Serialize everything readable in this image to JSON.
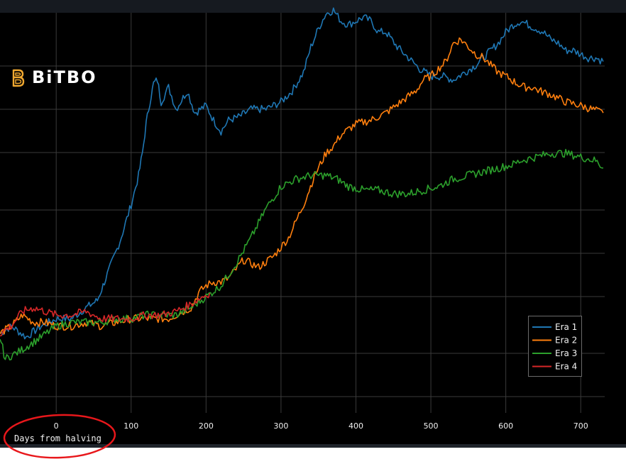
{
  "brand": {
    "logo_text": "BiTBO",
    "accent_color": "#f0a830",
    "logo_icon": "bitbo-b-icon"
  },
  "annotation": {
    "shape": "hand-drawn ellipse",
    "color": "#e8171b"
  },
  "chart_data": {
    "type": "line",
    "xlabel": "Days from halving",
    "xlim": [
      -75,
      732
    ],
    "x_ticks": [
      0,
      100,
      200,
      300,
      400,
      500,
      600,
      700
    ],
    "y_ticks_count": 8,
    "ylim": [
      0,
      100
    ],
    "grid": true,
    "legend_position": "bottom-right",
    "series": [
      {
        "name": "Era 1",
        "color": "#1f77b4",
        "points": [
          [
            -75,
            17
          ],
          [
            -60,
            19
          ],
          [
            -40,
            16
          ],
          [
            -20,
            19
          ],
          [
            0,
            21
          ],
          [
            20,
            21
          ],
          [
            40,
            24
          ],
          [
            55,
            26
          ],
          [
            70,
            34
          ],
          [
            85,
            42
          ],
          [
            100,
            52
          ],
          [
            110,
            60
          ],
          [
            115,
            66
          ],
          [
            120,
            74
          ],
          [
            125,
            80
          ],
          [
            130,
            85
          ],
          [
            135,
            86
          ],
          [
            140,
            80
          ],
          [
            150,
            84
          ],
          [
            160,
            78
          ],
          [
            175,
            83
          ],
          [
            185,
            77
          ],
          [
            200,
            79
          ],
          [
            210,
            75
          ],
          [
            220,
            72
          ],
          [
            230,
            75
          ],
          [
            245,
            76
          ],
          [
            260,
            78
          ],
          [
            280,
            78
          ],
          [
            300,
            80
          ],
          [
            315,
            83
          ],
          [
            330,
            88
          ],
          [
            340,
            95
          ],
          [
            350,
            100
          ],
          [
            360,
            104
          ],
          [
            370,
            105
          ],
          [
            380,
            102
          ],
          [
            390,
            101
          ],
          [
            400,
            102
          ],
          [
            410,
            103
          ],
          [
            420,
            102
          ],
          [
            430,
            99
          ],
          [
            440,
            99
          ],
          [
            455,
            95
          ],
          [
            470,
            92
          ],
          [
            485,
            89
          ],
          [
            500,
            87
          ],
          [
            515,
            87
          ],
          [
            530,
            86
          ],
          [
            545,
            88
          ],
          [
            560,
            90
          ],
          [
            575,
            93
          ],
          [
            590,
            96
          ],
          [
            600,
            99
          ],
          [
            610,
            101
          ],
          [
            620,
            102
          ],
          [
            630,
            101
          ],
          [
            640,
            100
          ],
          [
            650,
            99
          ],
          [
            660,
            97
          ],
          [
            670,
            96
          ],
          [
            680,
            94
          ],
          [
            690,
            94
          ],
          [
            700,
            93
          ],
          [
            710,
            92
          ],
          [
            720,
            92
          ],
          [
            730,
            91
          ]
        ]
      },
      {
        "name": "Era 2",
        "color": "#ff7f0e",
        "points": [
          [
            -75,
            17
          ],
          [
            -60,
            19
          ],
          [
            -45,
            22
          ],
          [
            -30,
            20
          ],
          [
            -15,
            20
          ],
          [
            0,
            19
          ],
          [
            20,
            19
          ],
          [
            40,
            20
          ],
          [
            60,
            19
          ],
          [
            80,
            20
          ],
          [
            100,
            21
          ],
          [
            120,
            21
          ],
          [
            150,
            21
          ],
          [
            170,
            23
          ],
          [
            180,
            24
          ],
          [
            190,
            28
          ],
          [
            200,
            30
          ],
          [
            210,
            31
          ],
          [
            220,
            31
          ],
          [
            230,
            32
          ],
          [
            250,
            37
          ],
          [
            270,
            35
          ],
          [
            290,
            38
          ],
          [
            310,
            43
          ],
          [
            330,
            52
          ],
          [
            345,
            60
          ],
          [
            360,
            66
          ],
          [
            370,
            68
          ],
          [
            380,
            71
          ],
          [
            400,
            74
          ],
          [
            420,
            75
          ],
          [
            440,
            77
          ],
          [
            460,
            80
          ],
          [
            480,
            83
          ],
          [
            490,
            86
          ],
          [
            500,
            87
          ],
          [
            510,
            89
          ],
          [
            520,
            91
          ],
          [
            530,
            96
          ],
          [
            540,
            97
          ],
          [
            550,
            95
          ],
          [
            560,
            93
          ],
          [
            570,
            92
          ],
          [
            580,
            90
          ],
          [
            590,
            88
          ],
          [
            600,
            87
          ],
          [
            615,
            85
          ],
          [
            625,
            84
          ],
          [
            635,
            84
          ],
          [
            645,
            83
          ],
          [
            660,
            82
          ],
          [
            680,
            80
          ],
          [
            700,
            79
          ],
          [
            715,
            78
          ],
          [
            730,
            77
          ]
        ]
      },
      {
        "name": "Era 3",
        "color": "#2ca02c",
        "points": [
          [
            -75,
            16
          ],
          [
            -68,
            10
          ],
          [
            -60,
            11
          ],
          [
            -50,
            12
          ],
          [
            -35,
            14
          ],
          [
            -20,
            16
          ],
          [
            0,
            19
          ],
          [
            20,
            20
          ],
          [
            40,
            20
          ],
          [
            60,
            20
          ],
          [
            80,
            21
          ],
          [
            100,
            21
          ],
          [
            120,
            22
          ],
          [
            140,
            22
          ],
          [
            160,
            22
          ],
          [
            180,
            24
          ],
          [
            200,
            27
          ],
          [
            220,
            30
          ],
          [
            240,
            36
          ],
          [
            260,
            43
          ],
          [
            280,
            51
          ],
          [
            300,
            57
          ],
          [
            320,
            59
          ],
          [
            340,
            60
          ],
          [
            360,
            60
          ],
          [
            375,
            59
          ],
          [
            390,
            57
          ],
          [
            410,
            56
          ],
          [
            430,
            56
          ],
          [
            450,
            55
          ],
          [
            470,
            55
          ],
          [
            490,
            56
          ],
          [
            510,
            57
          ],
          [
            530,
            59
          ],
          [
            550,
            60
          ],
          [
            570,
            61
          ],
          [
            590,
            62
          ],
          [
            610,
            63
          ],
          [
            620,
            64
          ],
          [
            640,
            65
          ],
          [
            660,
            66
          ],
          [
            680,
            66
          ],
          [
            700,
            65
          ],
          [
            720,
            64
          ],
          [
            730,
            62
          ]
        ]
      },
      {
        "name": "Era 4",
        "color": "#d62728",
        "points": [
          [
            -75,
            17
          ],
          [
            -60,
            19
          ],
          [
            -45,
            23
          ],
          [
            -30,
            24
          ],
          [
            -15,
            23
          ],
          [
            0,
            22
          ],
          [
            20,
            22
          ],
          [
            40,
            23
          ],
          [
            60,
            21
          ],
          [
            80,
            21
          ],
          [
            100,
            21
          ],
          [
            120,
            22
          ],
          [
            140,
            22
          ],
          [
            160,
            23
          ],
          [
            180,
            25
          ],
          [
            195,
            27
          ],
          [
            205,
            28
          ]
        ]
      }
    ]
  }
}
